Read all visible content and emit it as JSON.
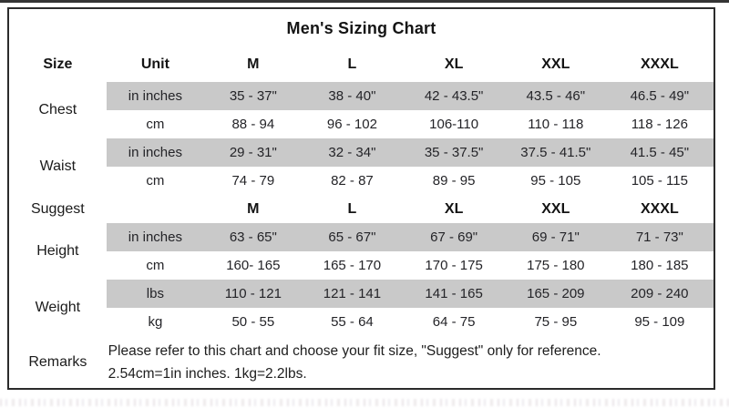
{
  "chart_data": {
    "type": "table",
    "title": "Men's Sizing Chart",
    "columns": [
      "Size",
      "Unit",
      "M",
      "L",
      "XL",
      "XXL",
      "XXXL"
    ],
    "sections": [
      {
        "label": "Chest",
        "rows": [
          {
            "unit": "in inches",
            "shaded": true,
            "values": [
              "35 - 37\"",
              "38 - 40\"",
              "42 - 43.5\"",
              "43.5 - 46\"",
              "46.5 - 49\""
            ]
          },
          {
            "unit": "cm",
            "shaded": false,
            "values": [
              "88 - 94",
              "96 - 102",
              "106-110",
              "110 - 118",
              "118 - 126"
            ]
          }
        ]
      },
      {
        "label": "Waist",
        "rows": [
          {
            "unit": "in inches",
            "shaded": true,
            "values": [
              "29 - 31\"",
              "32 - 34\"",
              "35 - 37.5\"",
              "37.5 - 41.5\"",
              "41.5 - 45\""
            ]
          },
          {
            "unit": "cm",
            "shaded": false,
            "values": [
              "74 - 79",
              "82 - 87",
              "89 - 95",
              "95 - 105",
              "105 - 115"
            ]
          }
        ]
      },
      {
        "label": "Suggest",
        "rows": [
          {
            "unit": "",
            "shaded": false,
            "bold": true,
            "values": [
              "M",
              "L",
              "XL",
              "XXL",
              "XXXL"
            ]
          }
        ]
      },
      {
        "label": "Height",
        "rows": [
          {
            "unit": "in inches",
            "shaded": true,
            "values": [
              "63 - 65\"",
              "65 - 67\"",
              "67 - 69\"",
              "69 - 71\"",
              "71 - 73\""
            ]
          },
          {
            "unit": "cm",
            "shaded": false,
            "values": [
              "160- 165",
              "165 - 170",
              "170 - 175",
              "175 - 180",
              "180 - 185"
            ]
          }
        ]
      },
      {
        "label": "Weight",
        "rows": [
          {
            "unit": "lbs",
            "shaded": true,
            "values": [
              "110 - 121",
              "121 - 141",
              "141 - 165",
              "165 - 209",
              "209 - 240"
            ]
          },
          {
            "unit": "kg",
            "shaded": false,
            "values": [
              "50 - 55",
              "55 - 64",
              "64 - 75",
              "75 - 95",
              "95 - 109"
            ]
          }
        ]
      },
      {
        "label": "Remarks",
        "lines": [
          "Please refer to this chart and choose your fit size, \"Suggest\" only for reference.",
          "2.54cm=1in inches. 1kg=2.2lbs."
        ]
      }
    ],
    "layout": {
      "shaded_band_color": "#c9c9c9",
      "border_color": "#2b2b2b",
      "grid": "off"
    }
  }
}
